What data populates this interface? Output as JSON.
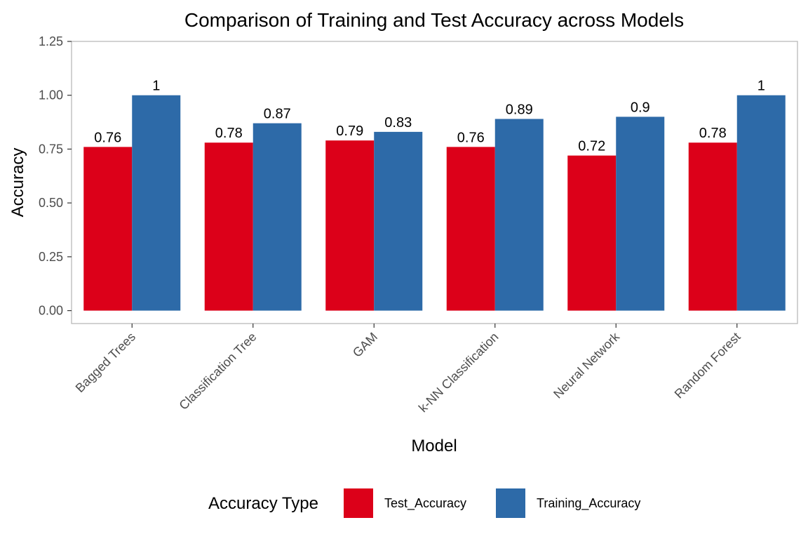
{
  "chart_data": {
    "type": "bar",
    "title": "Comparison of Training and Test Accuracy across Models",
    "xlabel": "Model",
    "ylabel": "Accuracy",
    "ylim": [
      -0.06,
      1.25
    ],
    "yticks": [
      0.0,
      0.25,
      0.5,
      0.75,
      1.0,
      1.25
    ],
    "ytick_labels": [
      "0.00",
      "0.25",
      "0.50",
      "0.75",
      "1.00",
      "1.25"
    ],
    "categories": [
      "Bagged Trees",
      "Classification Tree",
      "GAM",
      "k-NN Classification",
      "Neural Network",
      "Random Forest"
    ],
    "series": [
      {
        "name": "Test_Accuracy",
        "color": "#DC0019",
        "values": [
          0.76,
          0.78,
          0.79,
          0.76,
          0.72,
          0.78
        ],
        "labels": [
          "0.76",
          "0.78",
          "0.79",
          "0.76",
          "0.72",
          "0.78"
        ]
      },
      {
        "name": "Training_Accuracy",
        "color": "#2D6AA8",
        "values": [
          1.0,
          0.87,
          0.83,
          0.89,
          0.9,
          1.0
        ],
        "labels": [
          "1",
          "0.87",
          "0.83",
          "0.89",
          "0.9",
          "1"
        ]
      }
    ],
    "legend": {
      "title": "Accuracy Type",
      "placement": "bottom"
    },
    "grid": false
  }
}
